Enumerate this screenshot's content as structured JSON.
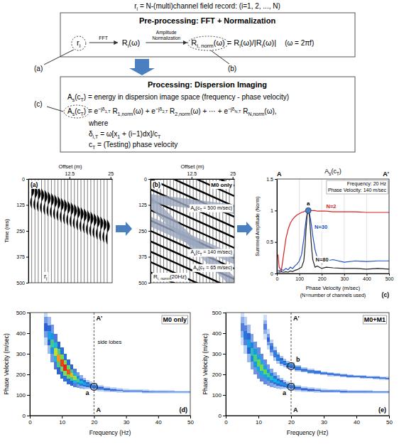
{
  "diagram": {
    "header": [
      "r",
      {
        "sub": "i"
      },
      " = N-(multi)channel field record: (i=1, 2, ..., N)"
    ],
    "pre_title": "Pre-processing: FFT + Normalization",
    "pre_items": {
      "input": [
        "r",
        {
          "sub": "i"
        }
      ],
      "arrow1": "FFT",
      "spectrum": [
        "R",
        {
          "sub": "i"
        },
        "(ω)"
      ],
      "arrow2": [
        "Amplitude",
        "Normalization"
      ],
      "normalized": [
        "R",
        {
          "sub": "i, norm"
        },
        "(ω)"
      ],
      "equation": [
        " = R",
        {
          "sub": "i"
        },
        "(ω)/|R",
        {
          "sub": "i"
        },
        "(ω)|"
      ],
      "omega": "(ω = 2πf)"
    },
    "callouts": [
      "(a)",
      "(b)",
      "(c)"
    ],
    "proc_title": "Processing: Dispersion Imaging",
    "proc_lines": [
      [
        "A",
        {
          "sub": "s"
        },
        "(c",
        {
          "sub": "T"
        },
        ") = energy in dispersion image space (frequency - phase velocity)"
      ],
      [
        "A",
        {
          "sub": "s"
        },
        "(c",
        {
          "sub": "T"
        },
        ")",
        " = e",
        {
          "sup": "−jδ"
        },
        {
          "supsub": "1,T"
        },
        " R",
        {
          "sub": "1,norm"
        },
        "(ω) + e",
        {
          "sup": "−jδ"
        },
        {
          "supsub": "2,T"
        },
        " R",
        {
          "sub": "2,norm"
        },
        "(ω) + ⋯ + e",
        {
          "sup": "−jδ"
        },
        {
          "supsub": "N,T"
        },
        " R",
        {
          "sub": "N,norm"
        },
        "(ω),"
      ],
      [
        "where"
      ],
      [
        "δ",
        {
          "sub": "i,T"
        },
        " = ω[x",
        {
          "sub": "1"
        },
        " + (i−1)dx]/c",
        {
          "sub": "T"
        }
      ],
      [
        "c",
        {
          "sub": "T"
        },
        " = (Testing) phase velocity"
      ]
    ]
  },
  "chart_data": [
    {
      "type": "seismogram",
      "panel": "(a)",
      "x_label": "Offset (m)",
      "y_label": "Time (ms)",
      "xlim": [
        0,
        25.5
      ],
      "xticks": [
        12.5,
        25
      ],
      "ylim": [
        0,
        500
      ],
      "yticks": [
        0,
        125,
        250,
        375,
        500
      ],
      "x": [
        1,
        2,
        3,
        4,
        5,
        6,
        7,
        8,
        9,
        10,
        11,
        12,
        13,
        14,
        15,
        16,
        17,
        18,
        19,
        20,
        21,
        22,
        23,
        24
      ],
      "values": [
        55,
        63,
        70,
        78,
        85,
        93,
        100,
        108,
        115,
        123,
        130,
        138,
        145,
        153,
        160,
        168,
        175,
        183,
        190,
        198,
        205,
        213,
        220,
        228
      ],
      "trace_label": [
        "r",
        {
          "sub": "i"
        }
      ]
    },
    {
      "type": "normalized-seismogram",
      "panel": "(b)",
      "x_label": "Offset (m)",
      "xlim": [
        0,
        25.5
      ],
      "xticks": [
        12.5,
        25
      ],
      "ylim": [
        0,
        500
      ],
      "yticks": [
        0,
        125,
        250,
        375,
        500
      ],
      "x": [
        1,
        2,
        3,
        4,
        5,
        6,
        7,
        8,
        9,
        10,
        11,
        12,
        13,
        14,
        15,
        16,
        17,
        18,
        19,
        20,
        21,
        22,
        23,
        24
      ],
      "stripe_t0": [
        -200,
        -150,
        -100,
        -50,
        0,
        50,
        100,
        150,
        200,
        250,
        300,
        350,
        400,
        450
      ],
      "stripe_velocity": 140,
      "mode_label": "M0 only",
      "trace_label": [
        "R",
        {
          "sub": "i, norm"
        },
        "(20Hz)"
      ],
      "bands": [
        {
          "velocity": 500,
          "t0": 95,
          "label": [
            "A",
            {
              "sub": "s"
            },
            "(c",
            {
              "sub": "T"
            },
            " = 500 m/sec)"
          ]
        },
        {
          "velocity": 140,
          "t0": 205,
          "label": [
            "A",
            {
              "sub": "s"
            },
            "(c",
            {
              "sub": "T"
            },
            " = 140 m/sec)"
          ]
        },
        {
          "velocity": 65,
          "t0": 110,
          "label": [
            "A",
            {
              "sub": "s"
            },
            "(c",
            {
              "sub": "T"
            },
            " = 65 m/sec)"
          ]
        }
      ]
    },
    {
      "type": "line",
      "panel": "(c)",
      "title": [
        "A",
        {
          "sub": "s"
        },
        "(c",
        {
          "sub": "T"
        },
        ")"
      ],
      "corner_labels": [
        "A",
        "A'"
      ],
      "x_label": "Phase Velocity (m/sec)",
      "x_note": "(N=number of channels used)",
      "y_label": "Summed Amplitude (Norm)",
      "xlim": [
        0,
        500
      ],
      "xticks": [
        0,
        100,
        200,
        300,
        400,
        500
      ],
      "ylim": [
        0,
        1.5
      ],
      "yticks": [
        0,
        0.5,
        1,
        1.5
      ],
      "grid": true,
      "info": [
        "Frequency: 20 Hz",
        "Phase Velocity: 140 m/sec"
      ],
      "x": [
        5,
        10,
        20,
        30,
        40,
        50,
        60,
        70,
        80,
        90,
        100,
        110,
        120,
        125,
        130,
        135,
        140,
        145,
        150,
        155,
        160,
        170,
        180,
        200,
        220,
        250,
        300,
        350,
        400,
        450,
        500
      ],
      "series": [
        {
          "name": "N=2",
          "color": "#d62020",
          "values": [
            0.3,
            0.1,
            0.05,
            0.3,
            0.55,
            0.7,
            0.8,
            0.86,
            0.9,
            0.93,
            0.95,
            0.97,
            0.98,
            0.99,
            0.99,
            1.0,
            1.0,
            1.0,
            1.0,
            1.0,
            1.0,
            1.0,
            0.99,
            0.99,
            0.99,
            0.98,
            0.98,
            0.98,
            0.97,
            0.97,
            0.97
          ]
        },
        {
          "name": "N=30",
          "color": "#2050c0",
          "values": [
            0.05,
            0.04,
            0.06,
            0.05,
            0.08,
            0.06,
            0.1,
            0.08,
            0.12,
            0.15,
            0.2,
            0.3,
            0.55,
            0.7,
            0.85,
            0.96,
            1.0,
            0.96,
            0.86,
            0.74,
            0.6,
            0.38,
            0.25,
            0.15,
            0.2,
            0.22,
            0.18,
            0.2,
            0.19,
            0.2,
            0.2
          ]
        },
        {
          "name": "N=80",
          "color": "#202020",
          "values": [
            0.02,
            0.02,
            0.03,
            0.02,
            0.03,
            0.02,
            0.04,
            0.03,
            0.05,
            0.06,
            0.08,
            0.1,
            0.2,
            0.4,
            0.7,
            0.93,
            1.0,
            0.92,
            0.65,
            0.4,
            0.22,
            0.1,
            0.12,
            0.08,
            0.1,
            0.09,
            0.08,
            0.08,
            0.07,
            0.08,
            0.07
          ]
        }
      ],
      "points": [
        {
          "label": "a",
          "x": 140,
          "y": 1
        }
      ]
    },
    {
      "type": "dispersion-image",
      "panel": "(d)",
      "x_label": "Frequency (Hz)",
      "y_label": "Phase Velocity (m/sec)",
      "xlim": [
        0,
        50
      ],
      "xticks": [
        0,
        10,
        20,
        30,
        40,
        50
      ],
      "ylim": [
        0,
        500
      ],
      "yticks": [
        0,
        100,
        200,
        300,
        400,
        500
      ],
      "mode_label": "M0 only",
      "marker_x": 20,
      "marker_labels": [
        "A'",
        "A"
      ],
      "side_lobe_label": "side lobes",
      "series": [
        {
          "x": [
            5,
            6,
            7,
            8,
            9,
            10,
            11,
            12,
            13,
            14,
            15,
            16,
            17,
            18,
            19,
            20,
            22,
            24,
            26,
            28,
            30,
            32,
            34,
            36,
            38,
            40,
            42,
            44,
            46,
            48,
            50
          ],
          "values": [
            430,
            390,
            350,
            310,
            280,
            255,
            232,
            212,
            196,
            183,
            172,
            163,
            156,
            150,
            145,
            140,
            133,
            128,
            125,
            122,
            120,
            119,
            118,
            117,
            116,
            116,
            115,
            115,
            114,
            114,
            114
          ],
          "amplitude": [
            0.3,
            0.45,
            0.6,
            0.75,
            0.88,
            0.97,
            1.0,
            0.95,
            0.85,
            0.72,
            0.6,
            0.52,
            0.46,
            0.42,
            0.38,
            0.35,
            0.32,
            0.3,
            0.28,
            0.27,
            0.26,
            0.25,
            0.25,
            0.24,
            0.24,
            0.23,
            0.23,
            0.22,
            0.22,
            0.22,
            0.22
          ],
          "spread": [
            90,
            90,
            90,
            85,
            80,
            75,
            68,
            60,
            52,
            45,
            38,
            32,
            28,
            24,
            20,
            18,
            15,
            13,
            12,
            11,
            10,
            10,
            9,
            9,
            9,
            8,
            8,
            8,
            8,
            8,
            8
          ]
        }
      ],
      "points": [
        {
          "label": "a",
          "x": 20,
          "y": 140
        }
      ]
    },
    {
      "type": "dispersion-image",
      "panel": "(e)",
      "x_label": "Frequency (Hz)",
      "y_label": "Phase Velocity (m/sec)",
      "xlim": [
        0,
        50
      ],
      "xticks": [
        0,
        10,
        20,
        30,
        40,
        50
      ],
      "ylim": [
        0,
        500
      ],
      "yticks": [
        0,
        100,
        200,
        300,
        400,
        500
      ],
      "mode_label": "M0+M1",
      "marker_x": 20,
      "marker_labels": [
        "A'",
        "A"
      ],
      "series": [
        {
          "x": [
            5,
            6,
            7,
            8,
            9,
            10,
            11,
            12,
            13,
            14,
            15,
            16,
            17,
            18,
            19,
            20,
            22,
            24,
            26,
            28,
            30,
            32,
            34,
            36,
            38,
            40,
            42,
            44,
            46,
            48,
            50
          ],
          "values": [
            430,
            390,
            350,
            310,
            280,
            255,
            232,
            212,
            196,
            183,
            172,
            163,
            156,
            150,
            145,
            140,
            133,
            128,
            125,
            122,
            120,
            119,
            118,
            117,
            116,
            116,
            115,
            115,
            114,
            114,
            114
          ],
          "amplitude": [
            0.25,
            0.35,
            0.45,
            0.55,
            0.62,
            0.66,
            0.68,
            0.66,
            0.6,
            0.55,
            0.5,
            0.46,
            0.42,
            0.4,
            0.38,
            0.36,
            0.33,
            0.31,
            0.3,
            0.29,
            0.28,
            0.28,
            0.27,
            0.27,
            0.26,
            0.26,
            0.26,
            0.25,
            0.25,
            0.25,
            0.25
          ],
          "spread": [
            90,
            90,
            90,
            85,
            80,
            75,
            68,
            60,
            52,
            45,
            38,
            32,
            28,
            24,
            20,
            18,
            15,
            13,
            12,
            11,
            10,
            10,
            9,
            9,
            9,
            8,
            8,
            8,
            8,
            8,
            8
          ]
        },
        {
          "x": [
            12,
            13,
            14,
            15,
            16,
            17,
            18,
            19,
            20,
            22,
            24,
            26,
            28,
            30,
            32,
            34,
            36,
            38,
            40,
            42,
            44,
            46,
            48,
            50
          ],
          "values": [
            430,
            370,
            330,
            300,
            280,
            265,
            255,
            246,
            240,
            230,
            222,
            215,
            210,
            205,
            201,
            198,
            195,
            192,
            190,
            188,
            186,
            184,
            182,
            180
          ],
          "amplitude": [
            0.25,
            0.3,
            0.35,
            0.38,
            0.4,
            0.42,
            0.42,
            0.42,
            0.42,
            0.4,
            0.38,
            0.37,
            0.36,
            0.35,
            0.35,
            0.34,
            0.34,
            0.33,
            0.33,
            0.33,
            0.32,
            0.32,
            0.32,
            0.32
          ],
          "spread": [
            60,
            50,
            40,
            34,
            28,
            24,
            21,
            19,
            17,
            15,
            13,
            12,
            11,
            10,
            10,
            9,
            9,
            9,
            8,
            8,
            8,
            8,
            8,
            8
          ]
        }
      ],
      "points": [
        {
          "label": "a",
          "x": 20,
          "y": 140
        },
        {
          "label": "b",
          "x": 20,
          "y": 240
        }
      ]
    }
  ]
}
